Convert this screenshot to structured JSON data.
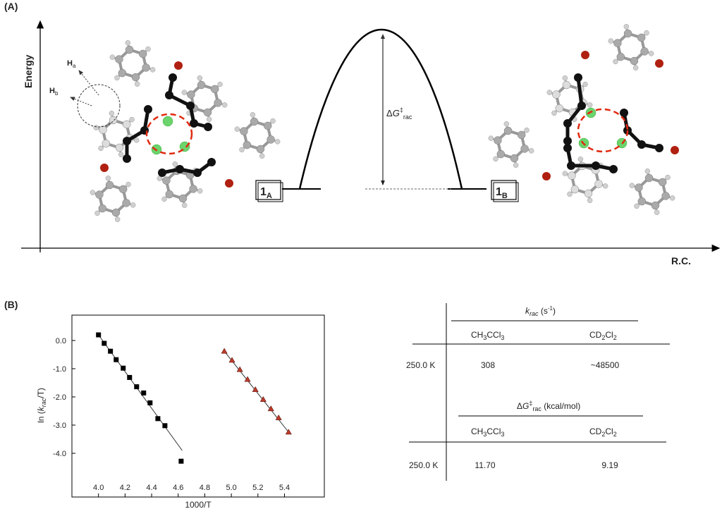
{
  "panel_a": {
    "label": "(A)",
    "y_axis": "Energy",
    "x_axis": "R.C.",
    "h_a": {
      "main": "H",
      "sub": "a"
    },
    "h_b": {
      "main": "H",
      "sub": "b"
    },
    "state_a": {
      "main": "1",
      "sub": "A"
    },
    "state_b": {
      "main": "1",
      "sub": "B"
    },
    "barrier": {
      "delta": "Δ",
      "symbol": "G",
      "sup": "‡",
      "sub": "rac"
    }
  },
  "chart_data": {
    "type": "scatter",
    "panel_label": "(B)",
    "x_label": "1000/T",
    "y_label": {
      "prefix": "ln (",
      "symbol": "k",
      "sub": "rac",
      "suffix": "/T)"
    },
    "xlim": [
      3.8,
      5.7
    ],
    "ylim": [
      -5.55,
      0.9
    ],
    "xticks": [
      {
        "value": 4.0,
        "label": "4.0"
      },
      4.2,
      4.4,
      4.6,
      4.8,
      {
        "value": 5.0,
        "label": "5.0"
      },
      5.2,
      5.4
    ],
    "yticks": [
      {
        "value": 0,
        "label": "0.0"
      },
      {
        "value": -1,
        "label": "-1.0"
      },
      {
        "value": -2,
        "label": "-2.0"
      },
      {
        "value": -3,
        "label": "-3.0"
      },
      {
        "value": -4,
        "label": "-4.0"
      }
    ],
    "series": [
      {
        "marker": "square",
        "color": "#000000",
        "x": [
          4.0,
          4.043,
          4.09,
          4.133,
          4.186,
          4.234,
          4.287,
          4.34,
          4.388,
          4.447,
          4.5,
          4.622
        ],
        "values": [
          0.2,
          -0.1,
          -0.38,
          -0.68,
          -0.98,
          -1.31,
          -1.64,
          -1.86,
          -2.21,
          -2.77,
          -3.02,
          -4.28
        ],
        "fit_x": [
          4.0,
          4.63
        ],
        "fit_y": [
          0.2,
          -3.9
        ]
      },
      {
        "marker": "triangle",
        "color": "#c0392b",
        "x": [
          4.947,
          5.005,
          5.064,
          5.122,
          5.181,
          5.24,
          5.298,
          5.356,
          5.431
        ],
        "values": [
          -0.38,
          -0.7,
          -1.03,
          -1.38,
          -1.74,
          -2.09,
          -2.42,
          -2.74,
          -3.25
        ],
        "fit_x": [
          4.947,
          5.431
        ],
        "fit_y": [
          -0.38,
          -3.25
        ]
      }
    ]
  },
  "table": {
    "groups": [
      {
        "header": {
          "symbol": "k",
          "sub": "rac",
          "unit": " (s",
          "sup": "-1",
          "close": ")"
        },
        "columns": [
          [
            "CH",
            "3",
            "CCl",
            "3"
          ],
          [
            "CD",
            "2",
            "Cl",
            "2"
          ]
        ],
        "rows": [
          [
            "250.0 K",
            "308",
            "~48500"
          ]
        ]
      },
      {
        "header": {
          "delta": "Δ",
          "symbol": "G",
          "sup": "‡",
          "sub": "rac",
          "unit": " (kcal/mol)"
        },
        "columns": [
          [
            "CH",
            "3",
            "CCl",
            "3"
          ],
          [
            "CD",
            "2",
            "Cl",
            "2"
          ]
        ],
        "rows": [
          [
            "250.0 K",
            "11.70",
            "9.19"
          ]
        ]
      }
    ]
  }
}
